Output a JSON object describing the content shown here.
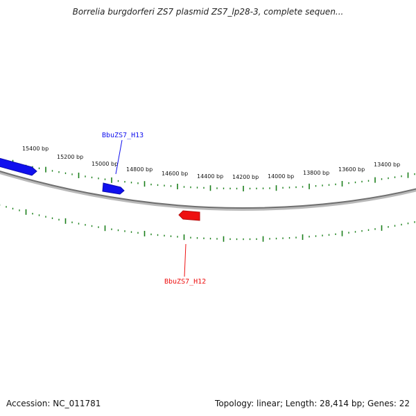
{
  "title": "Borrelia burgdorferi ZS7 plasmid ZS7_lp28-3, complete sequen...",
  "footer": {
    "accession": "Accession: NC_011781",
    "summary": "Topology: linear; Length: 28,414 bp; Genes: 22"
  },
  "colors": {
    "backbone": "#6f6f6f",
    "ticks": "#1a7f1a",
    "forward_gene": "#1010ee",
    "reverse_gene": "#ee1010"
  },
  "scale_labels": [
    "15400 bp",
    "15200 bp",
    "15000 bp",
    "14800 bp",
    "14600 bp",
    "14400 bp",
    "14200 bp",
    "14000 bp",
    "13800 bp",
    "13600 bp",
    "13400 bp"
  ],
  "genes": [
    {
      "name": "BbuZS7_H13",
      "label": "BbuZS7_H13",
      "strand": "forward",
      "color": "#1010ee"
    },
    {
      "name": "BbuZS7_H12",
      "label": "BbuZS7_H12",
      "strand": "reverse",
      "color": "#ee1010"
    }
  ]
}
